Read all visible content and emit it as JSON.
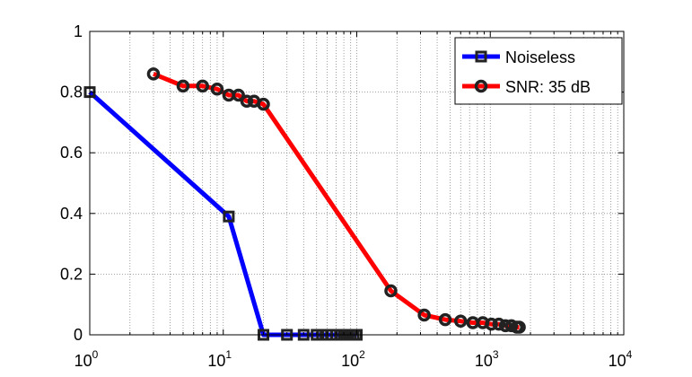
{
  "chart_data": {
    "type": "line",
    "x_scale": "log",
    "xlim": [
      1,
      10000
    ],
    "ylim": [
      0,
      1
    ],
    "x_ticks": [
      1,
      10,
      100,
      1000,
      10000
    ],
    "x_tick_labels": [
      {
        "base": "10",
        "exp": "0"
      },
      {
        "base": "10",
        "exp": "1"
      },
      {
        "base": "10",
        "exp": "2"
      },
      {
        "base": "10",
        "exp": "3"
      },
      {
        "base": "10",
        "exp": "4"
      }
    ],
    "y_ticks": [
      0,
      0.2,
      0.4,
      0.6,
      0.8,
      1
    ],
    "y_tick_labels": [
      "0",
      "0.2",
      "0.4",
      "0.6",
      "0.8",
      "1"
    ],
    "grid": true,
    "legend_position": "top-right",
    "series": [
      {
        "name": "Noiseless",
        "color": "#0000ff",
        "marker": "square",
        "x": [
          1,
          11,
          20,
          30,
          40,
          50,
          55,
          60,
          65,
          70,
          75,
          80,
          85,
          90,
          95,
          100
        ],
        "y": [
          0.8,
          0.39,
          0.0,
          0.0,
          0.0,
          0.0,
          0.0,
          0.0,
          0.0,
          0.0,
          0.0,
          0.0,
          0.0,
          0.0,
          0.0,
          0.0
        ]
      },
      {
        "name": "SNR: 35 dB",
        "color": "#ff0000",
        "marker": "circle",
        "x": [
          3,
          5,
          7,
          9,
          11,
          13,
          15,
          17,
          20,
          180,
          320,
          460,
          600,
          740,
          880,
          1020,
          1160,
          1300,
          1440,
          1580,
          1650
        ],
        "y": [
          0.86,
          0.82,
          0.82,
          0.81,
          0.79,
          0.79,
          0.77,
          0.77,
          0.76,
          0.145,
          0.065,
          0.05,
          0.045,
          0.04,
          0.04,
          0.035,
          0.035,
          0.03,
          0.03,
          0.025,
          0.025
        ]
      }
    ]
  }
}
